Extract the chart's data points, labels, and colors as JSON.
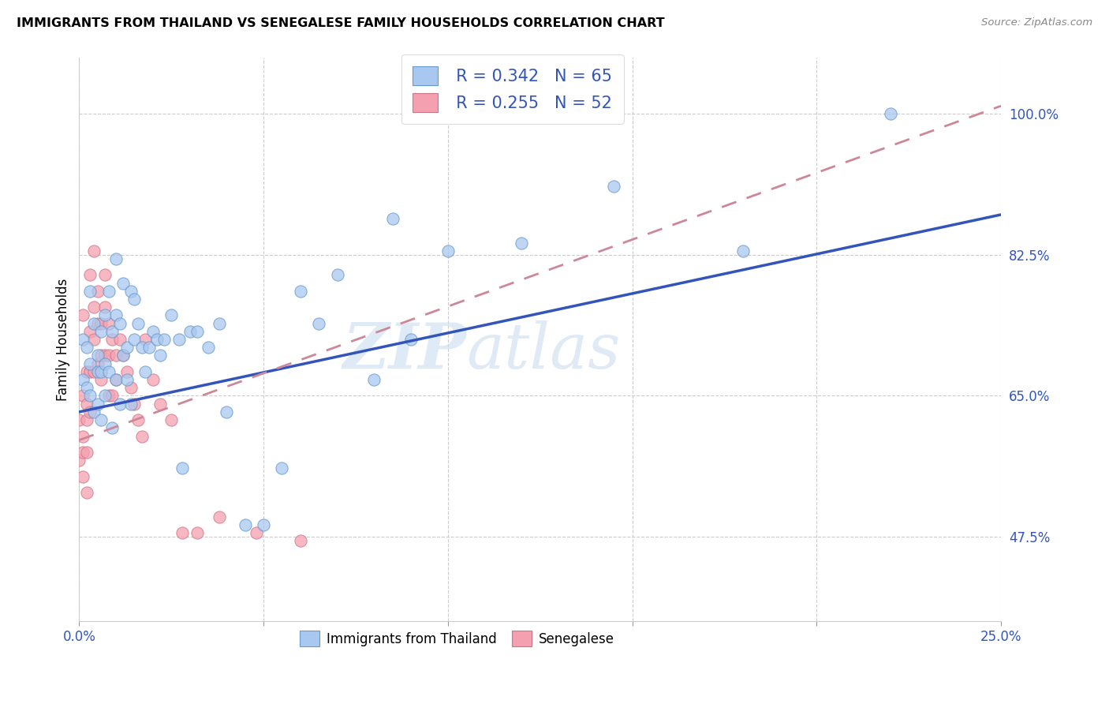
{
  "title": "IMMIGRANTS FROM THAILAND VS SENEGALESE FAMILY HOUSEHOLDS CORRELATION CHART",
  "source": "Source: ZipAtlas.com",
  "ylabel": "Family Households",
  "legend_r1": "R = 0.342",
  "legend_n1": "N = 65",
  "legend_r2": "R = 0.255",
  "legend_n2": "N = 52",
  "color_thailand": "#a8c8f0",
  "color_senegalese": "#f5a0b0",
  "color_border_thailand": "#6699cc",
  "color_border_senegalese": "#cc7788",
  "color_trend_thailand": "#3355bb",
  "color_trend_senegalese": "#cc8899",
  "watermark_zip": "ZIP",
  "watermark_atlas": "atlas",
  "xlim": [
    0.0,
    0.25
  ],
  "ylim": [
    0.37,
    1.07
  ],
  "x_ticks": [
    0.0,
    0.05,
    0.1,
    0.15,
    0.2,
    0.25
  ],
  "x_tick_labels": [
    "0.0%",
    "",
    "",
    "",
    "",
    "25.0%"
  ],
  "y_ticks": [
    0.475,
    0.65,
    0.825,
    1.0
  ],
  "y_tick_labels": [
    "47.5%",
    "65.0%",
    "82.5%",
    "100.0%"
  ],
  "thailand_x": [
    0.001,
    0.001,
    0.002,
    0.002,
    0.003,
    0.003,
    0.003,
    0.004,
    0.004,
    0.005,
    0.005,
    0.005,
    0.006,
    0.006,
    0.006,
    0.007,
    0.007,
    0.007,
    0.008,
    0.008,
    0.009,
    0.009,
    0.01,
    0.01,
    0.01,
    0.011,
    0.011,
    0.012,
    0.012,
    0.013,
    0.013,
    0.014,
    0.014,
    0.015,
    0.015,
    0.016,
    0.017,
    0.018,
    0.019,
    0.02,
    0.021,
    0.022,
    0.023,
    0.025,
    0.027,
    0.028,
    0.03,
    0.032,
    0.035,
    0.038,
    0.04,
    0.045,
    0.05,
    0.055,
    0.06,
    0.065,
    0.07,
    0.08,
    0.085,
    0.09,
    0.1,
    0.12,
    0.145,
    0.18,
    0.22
  ],
  "thailand_y": [
    0.67,
    0.72,
    0.66,
    0.71,
    0.69,
    0.65,
    0.78,
    0.63,
    0.74,
    0.7,
    0.68,
    0.64,
    0.73,
    0.68,
    0.62,
    0.75,
    0.69,
    0.65,
    0.78,
    0.68,
    0.73,
    0.61,
    0.82,
    0.75,
    0.67,
    0.74,
    0.64,
    0.79,
    0.7,
    0.71,
    0.67,
    0.78,
    0.64,
    0.77,
    0.72,
    0.74,
    0.71,
    0.68,
    0.71,
    0.73,
    0.72,
    0.7,
    0.72,
    0.75,
    0.72,
    0.56,
    0.73,
    0.73,
    0.71,
    0.74,
    0.63,
    0.49,
    0.49,
    0.56,
    0.78,
    0.74,
    0.8,
    0.67,
    0.87,
    0.72,
    0.83,
    0.84,
    0.91,
    0.83,
    1.0
  ],
  "senegalese_x": [
    0.0,
    0.0,
    0.001,
    0.001,
    0.001,
    0.001,
    0.001,
    0.002,
    0.002,
    0.002,
    0.002,
    0.002,
    0.003,
    0.003,
    0.003,
    0.003,
    0.004,
    0.004,
    0.004,
    0.004,
    0.005,
    0.005,
    0.005,
    0.006,
    0.006,
    0.006,
    0.007,
    0.007,
    0.007,
    0.008,
    0.008,
    0.008,
    0.009,
    0.009,
    0.01,
    0.01,
    0.011,
    0.012,
    0.013,
    0.014,
    0.015,
    0.016,
    0.017,
    0.018,
    0.02,
    0.022,
    0.025,
    0.028,
    0.032,
    0.038,
    0.048,
    0.06
  ],
  "senegalese_y": [
    0.62,
    0.57,
    0.75,
    0.65,
    0.6,
    0.58,
    0.55,
    0.68,
    0.64,
    0.62,
    0.58,
    0.53,
    0.8,
    0.73,
    0.68,
    0.63,
    0.83,
    0.76,
    0.72,
    0.68,
    0.78,
    0.74,
    0.69,
    0.74,
    0.7,
    0.67,
    0.8,
    0.76,
    0.7,
    0.74,
    0.7,
    0.65,
    0.72,
    0.65,
    0.7,
    0.67,
    0.72,
    0.7,
    0.68,
    0.66,
    0.64,
    0.62,
    0.6,
    0.72,
    0.67,
    0.64,
    0.62,
    0.48,
    0.48,
    0.5,
    0.48,
    0.47
  ],
  "trend_thai_x0": 0.0,
  "trend_thai_x1": 0.25,
  "trend_thai_y0": 0.63,
  "trend_thai_y1": 0.875,
  "trend_sen_x0": 0.0,
  "trend_sen_x1": 0.25,
  "trend_sen_y0": 0.595,
  "trend_sen_y1": 1.01
}
